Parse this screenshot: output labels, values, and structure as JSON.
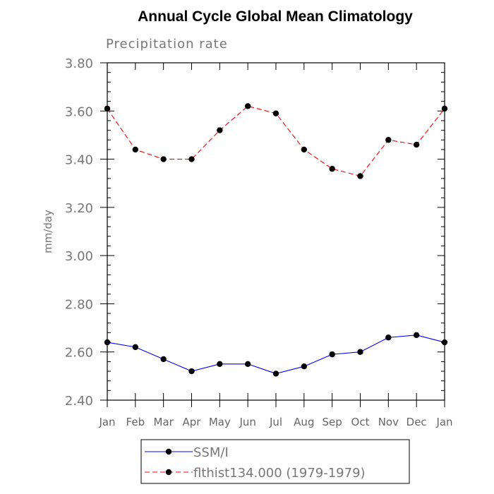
{
  "chart_data": {
    "type": "line",
    "title": "Annual Cycle Global Mean Climatology",
    "subtitle": "Precipitation rate",
    "xlabel": "",
    "ylabel": "mm/day",
    "ylim": [
      2.4,
      3.8
    ],
    "ytick_labels": [
      "2.40",
      "2.60",
      "2.80",
      "3.00",
      "3.20",
      "3.40",
      "3.60",
      "3.80"
    ],
    "ytick_values": [
      2.4,
      2.6,
      2.8,
      3.0,
      3.2,
      3.4,
      3.6,
      3.8
    ],
    "categories": [
      "Jan",
      "Feb",
      "Mar",
      "Apr",
      "May",
      "Jun",
      "Jul",
      "Aug",
      "Sep",
      "Oct",
      "Nov",
      "Dec",
      "Jan"
    ],
    "grid": false,
    "legend_position": "bottom",
    "series": [
      {
        "name": "SSM/I",
        "color": "#0000ff",
        "line_style": "solid",
        "marker": "filled-circle",
        "values": [
          2.64,
          2.62,
          2.57,
          2.52,
          2.55,
          2.55,
          2.51,
          2.54,
          2.59,
          2.6,
          2.66,
          2.67,
          2.64
        ]
      },
      {
        "name": "flthist134.000 (1979-1979)",
        "color": "#ff0000",
        "line_style": "dashed",
        "marker": "filled-circle",
        "values": [
          3.61,
          3.44,
          3.4,
          3.4,
          3.52,
          3.62,
          3.59,
          3.44,
          3.36,
          3.33,
          3.48,
          3.46,
          3.61
        ]
      }
    ]
  }
}
